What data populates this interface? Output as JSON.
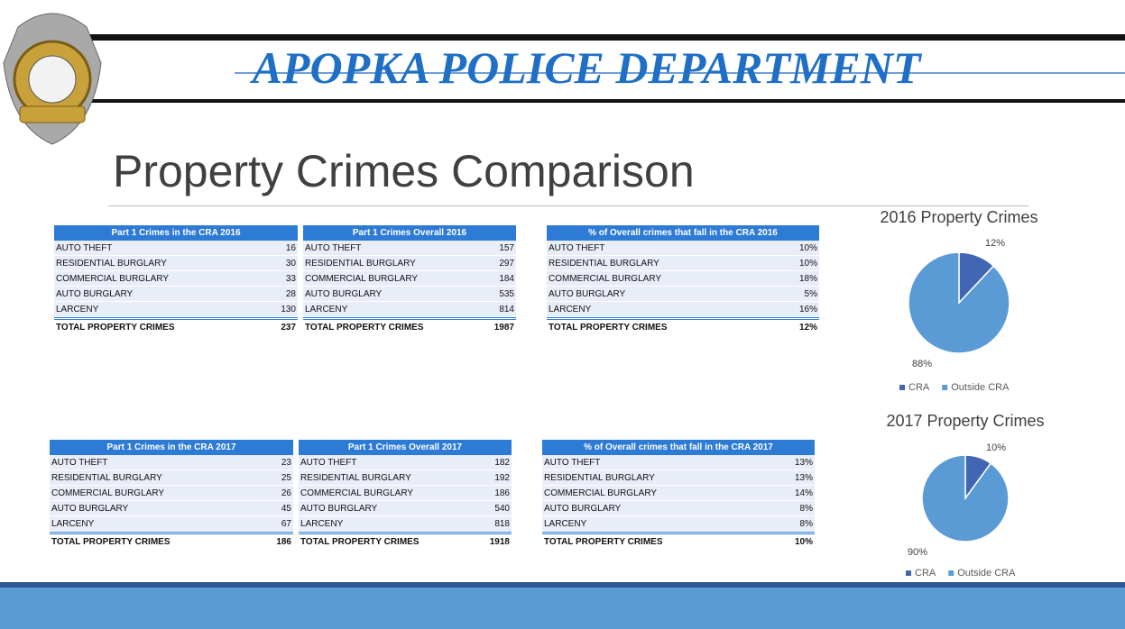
{
  "header": {
    "title": "APOPKA POLICE DEPARTMENT"
  },
  "slide_title": "Property Crimes Comparison",
  "tables": [
    {
      "sections": [
        {
          "header": "Part 1 Crimes in the CRA 2016",
          "rows": [
            [
              "AUTO THEFT",
              16
            ],
            [
              "RESIDENTIAL BURGLARY",
              30
            ],
            [
              "COMMERCIAL BURGLARY",
              33
            ],
            [
              "AUTO BURGLARY",
              28
            ],
            [
              "LARCENY",
              130
            ],
            [
              "TOTAL PROPERTY CRIMES",
              237
            ]
          ]
        },
        {
          "header": "Part 1 Crimes Overall 2016",
          "rows": [
            [
              "AUTO THEFT",
              157
            ],
            [
              "RESIDENTIAL BURGLARY",
              297
            ],
            [
              "COMMERCIAL BURGLARY",
              184
            ],
            [
              "AUTO BURGLARY",
              535
            ],
            [
              "LARCENY",
              814
            ],
            [
              "TOTAL PROPERTY CRIMES",
              1987
            ]
          ]
        },
        {
          "header": "% of Overall crimes that fall in the CRA 2016",
          "rows": [
            [
              "AUTO THEFT",
              "10%"
            ],
            [
              "RESIDENTIAL BURGLARY",
              "10%"
            ],
            [
              "COMMERCIAL BURGLARY",
              "18%"
            ],
            [
              "AUTO BURGLARY",
              "5%"
            ],
            [
              "LARCENY",
              "16%"
            ],
            [
              "TOTAL PROPERTY CRIMES",
              "12%"
            ]
          ]
        }
      ]
    },
    {
      "sections": [
        {
          "header": "Part 1 Crimes in the CRA 2017",
          "rows": [
            [
              "AUTO THEFT",
              23
            ],
            [
              "RESIDENTIAL BURGLARY",
              25
            ],
            [
              "COMMERCIAL BURGLARY",
              26
            ],
            [
              "AUTO BURGLARY",
              45
            ],
            [
              "LARCENY",
              67
            ],
            [
              "TOTAL PROPERTY CRIMES",
              186
            ]
          ]
        },
        {
          "header": "Part 1 Crimes Overall 2017",
          "rows": [
            [
              "AUTO THEFT",
              182
            ],
            [
              "RESIDENTIAL BURGLARY",
              192
            ],
            [
              "COMMERCIAL BURGLARY",
              186
            ],
            [
              "AUTO BURGLARY",
              540
            ],
            [
              "LARCENY",
              818
            ],
            [
              "TOTAL PROPERTY CRIMES",
              1918
            ]
          ]
        },
        {
          "header": "% of Overall crimes that fall in the CRA 2017",
          "rows": [
            [
              "AUTO THEFT",
              "13%"
            ],
            [
              "RESIDENTIAL BURGLARY",
              "13%"
            ],
            [
              "COMMERCIAL BURGLARY",
              "14%"
            ],
            [
              "AUTO BURGLARY",
              "8%"
            ],
            [
              "LARCENY",
              "8%"
            ],
            [
              "TOTAL PROPERTY CRIMES",
              "10%"
            ]
          ]
        }
      ]
    }
  ],
  "chart_data": [
    {
      "type": "pie",
      "title": "2016 Property Crimes",
      "categories": [
        "CRA",
        "Outside CRA"
      ],
      "values": [
        12,
        88
      ],
      "value_labels": [
        "12%",
        "88%"
      ],
      "colors": [
        "#4166b4",
        "#5b9bd5"
      ],
      "legend": "bottom"
    },
    {
      "type": "pie",
      "title": "2017 Property Crimes",
      "categories": [
        "CRA",
        "Outside CRA"
      ],
      "values": [
        10,
        90
      ],
      "value_labels": [
        "10%",
        "90%"
      ],
      "colors": [
        "#4166b4",
        "#5b9bd5"
      ],
      "legend": "bottom"
    }
  ]
}
